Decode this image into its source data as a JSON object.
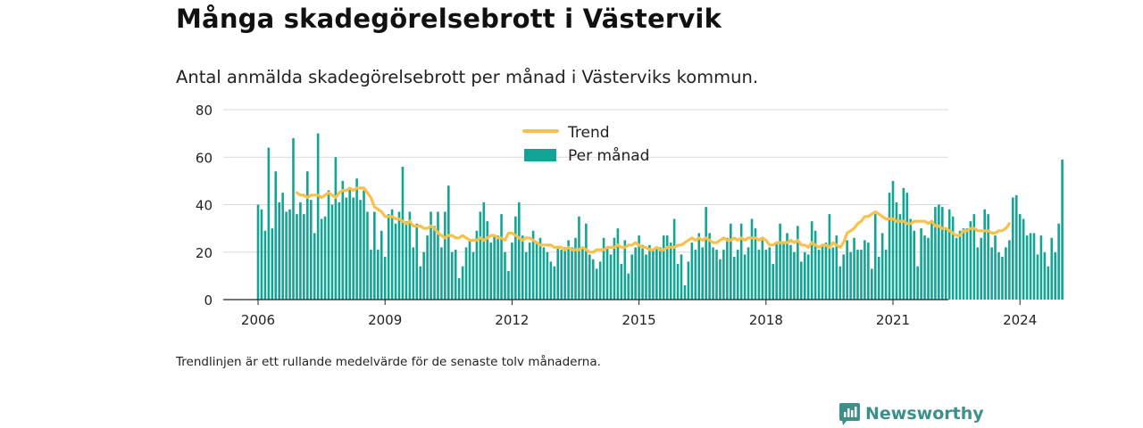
{
  "header": {
    "title": "Många skadegörelsebrott i Västervik",
    "subtitle": "Antal anmälda skadegörelsebrott per månad i Västerviks kommun."
  },
  "footer": {
    "note": "Trendlinjen är ett rullande medelvärde för de senaste tolv månaderna.",
    "brand": "Newsworthy",
    "brand_icon": "newsworthy-logo-icon"
  },
  "colors": {
    "bars": "#12a596",
    "trend": "#f9c04c",
    "grid": "#d9d9d9",
    "axis": "#222222",
    "brand": "#3d8f8a"
  },
  "chart_data": {
    "type": "bar",
    "title": "Många skadegörelsebrott i Västervik",
    "subtitle": "Antal anmälda skadegörelsebrott per månad i Västerviks kommun.",
    "x_start": "2006-01",
    "x_ticks": [
      "2006",
      "2009",
      "2012",
      "2015",
      "2018",
      "2021",
      "2024"
    ],
    "y_ticks": [
      0,
      20,
      40,
      60,
      80
    ],
    "ylim": [
      0,
      80
    ],
    "grid": true,
    "legend_position": "top-center",
    "series": [
      {
        "name": "Per månad",
        "type": "bar",
        "values": [
          40,
          38,
          29,
          64,
          30,
          54,
          41,
          45,
          37,
          38,
          68,
          36,
          41,
          36,
          54,
          42,
          28,
          70,
          34,
          35,
          46,
          40,
          60,
          41,
          50,
          43,
          47,
          43,
          51,
          42,
          46,
          37,
          21,
          37,
          21,
          29,
          18,
          36,
          38,
          32,
          37,
          56,
          33,
          37,
          22,
          32,
          14,
          20,
          27,
          37,
          31,
          37,
          22,
          37,
          48,
          20,
          21,
          9,
          14,
          22,
          25,
          20,
          29,
          37,
          41,
          33,
          24,
          27,
          27,
          36,
          20,
          12,
          24,
          35,
          41,
          27,
          20,
          24,
          29,
          24,
          26,
          22,
          20,
          16,
          14,
          22,
          21,
          22,
          25,
          22,
          26,
          35,
          22,
          32,
          19,
          17,
          13,
          16,
          26,
          22,
          19,
          26,
          30,
          15,
          25,
          11,
          19,
          22,
          27,
          23,
          19,
          23,
          21,
          22,
          22,
          27,
          27,
          24,
          34,
          15,
          19,
          6,
          16,
          24,
          21,
          28,
          22,
          39,
          28,
          22,
          21,
          17,
          21,
          26,
          32,
          18,
          21,
          32,
          19,
          22,
          34,
          30,
          21,
          25,
          21,
          22,
          15,
          24,
          32,
          24,
          28,
          23,
          20,
          31,
          16,
          20,
          19,
          33,
          29,
          21,
          23,
          24,
          36,
          22,
          27,
          14,
          19,
          25,
          20,
          26,
          21,
          21,
          25,
          24,
          13,
          36,
          18,
          28,
          21,
          45,
          50,
          41,
          36,
          47,
          45,
          34,
          29,
          14,
          30,
          27,
          26,
          32,
          39,
          40,
          39,
          30,
          38,
          35,
          26,
          29,
          30,
          30,
          33,
          36,
          22,
          26,
          38,
          36,
          22,
          27,
          20,
          18,
          22,
          25,
          43,
          44,
          36,
          34,
          27,
          28,
          28,
          19,
          27,
          20,
          14,
          26,
          20,
          32,
          59
        ]
      },
      {
        "name": "Trend",
        "type": "line",
        "start_index": 11,
        "values": [
          45,
          44,
          44,
          43,
          44,
          44,
          44,
          43,
          44,
          45,
          44,
          43,
          45,
          46,
          46,
          47,
          46,
          47,
          47,
          47,
          45,
          43,
          39,
          38,
          37,
          35,
          35,
          35,
          34,
          34,
          33,
          32,
          33,
          31,
          31,
          31,
          30,
          30,
          31,
          30,
          28,
          27,
          26,
          27,
          27,
          26,
          26,
          27,
          26,
          25,
          25,
          25,
          26,
          25,
          26,
          27,
          27,
          26,
          26,
          25,
          28,
          28,
          27,
          26,
          25,
          26,
          26,
          25,
          24,
          23,
          23,
          23,
          23,
          22,
          22,
          22,
          21,
          22,
          21,
          21,
          21,
          22,
          21,
          20,
          20,
          21,
          21,
          21,
          22,
          22,
          22,
          23,
          22,
          22,
          23,
          23,
          24,
          23,
          22,
          22,
          21,
          21,
          22,
          21,
          21,
          22,
          22,
          22,
          23,
          23,
          24,
          25,
          26,
          25,
          26,
          25,
          26,
          25,
          24,
          24,
          25,
          26,
          25,
          25,
          26,
          25,
          26,
          25,
          26,
          26,
          26,
          25,
          26,
          25,
          23,
          23,
          24,
          24,
          24,
          24,
          25,
          24,
          25,
          23,
          23,
          22,
          24,
          23,
          22,
          23,
          23,
          22,
          24,
          23,
          22,
          24,
          28,
          29,
          30,
          32,
          33,
          35,
          35,
          36,
          37,
          36,
          35,
          34,
          34,
          34,
          33,
          33,
          33,
          32,
          32,
          33,
          33,
          33,
          33,
          32,
          33,
          31,
          31,
          30,
          30,
          29,
          28,
          27,
          27,
          29,
          29,
          30,
          30,
          29,
          29,
          29,
          29,
          28,
          28,
          29,
          29,
          30,
          32
        ]
      }
    ]
  }
}
